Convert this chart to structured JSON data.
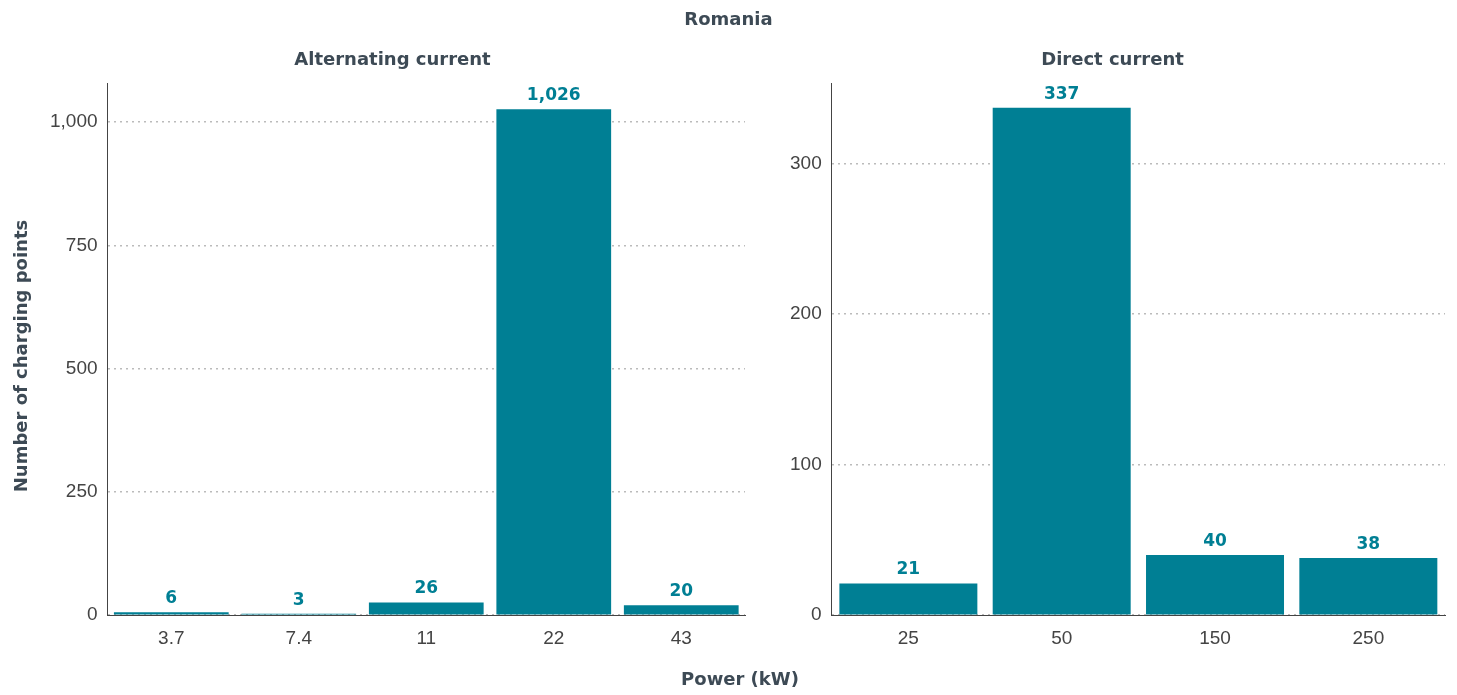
{
  "chart_data": [
    {
      "type": "other",
      "title": "Romania",
      "xlabel": "Power (kW)",
      "ylabel": "Number of charging points"
    },
    {
      "type": "bar",
      "title": "Alternating current",
      "categories": [
        "3.7",
        "7.4",
        "11",
        "22",
        "43"
      ],
      "values": [
        6,
        3,
        26,
        1026,
        20
      ],
      "value_labels": [
        "6",
        "3",
        "26",
        "1,026",
        "20"
      ],
      "color": "#007f94",
      "ylim": [
        0,
        1078
      ],
      "yticks": [
        0,
        250,
        500,
        750,
        {
          "value": 1000,
          "label": "1,000"
        }
      ],
      "grid": "y",
      "legend": false
    },
    {
      "type": "bar",
      "title": "Direct current",
      "categories": [
        "25",
        "50",
        "150",
        "250"
      ],
      "values": [
        21,
        337,
        40,
        38
      ],
      "data_labels": true,
      "color": "#007f94",
      "ylim": [
        0,
        353
      ],
      "yticks": [
        0,
        100,
        200,
        300
      ],
      "grid": "y",
      "legend": false
    }
  ]
}
